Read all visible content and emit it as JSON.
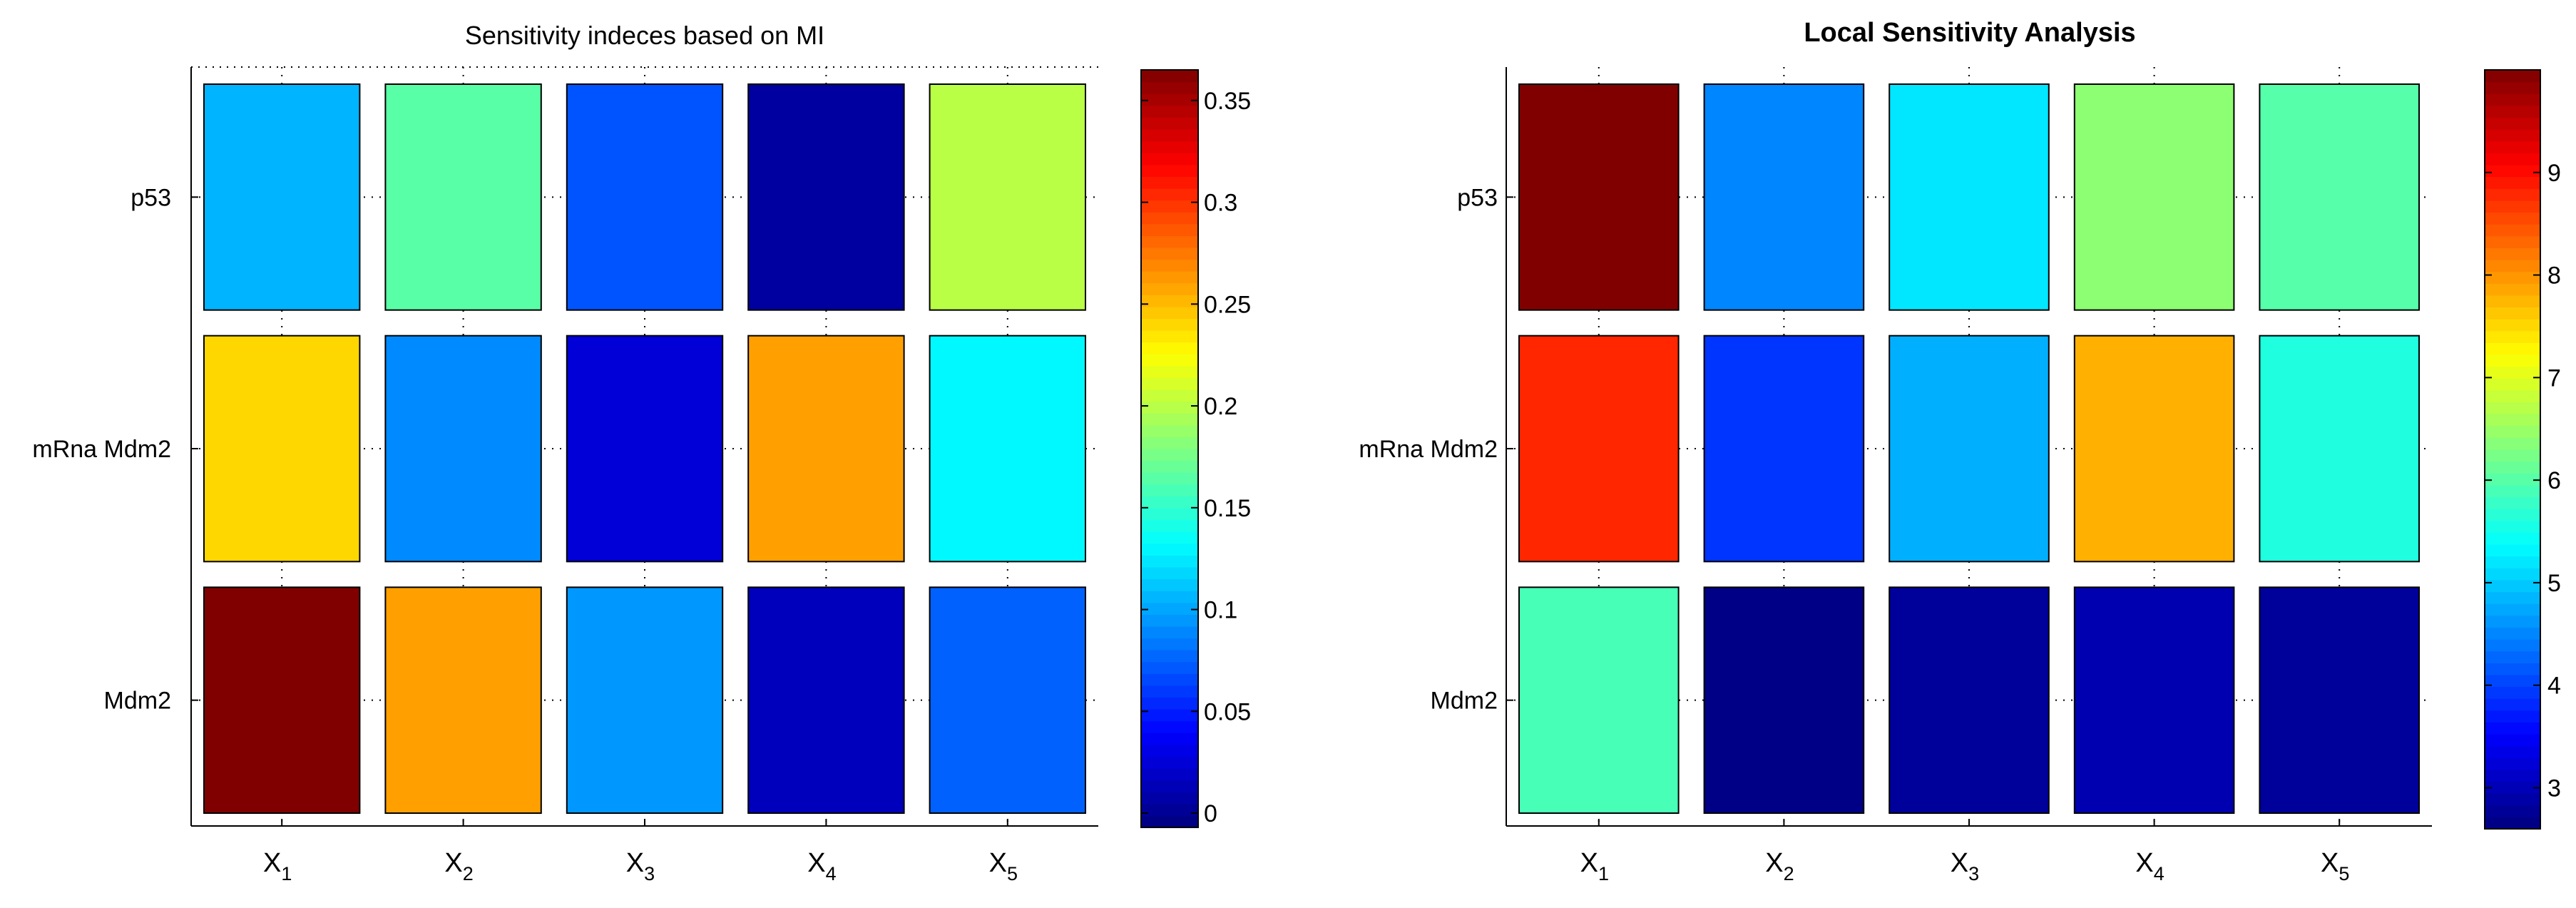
{
  "chart_data": [
    {
      "type": "heatmap",
      "title": "Sensitivity indeces based on MI",
      "rows": [
        "p53",
        "mRna Mdm2",
        "Mdm2"
      ],
      "columns": [
        "X1",
        "X2",
        "X3",
        "X4",
        "X5"
      ],
      "column_labels": [
        {
          "base": "X",
          "sub": "1"
        },
        {
          "base": "X",
          "sub": "2"
        },
        {
          "base": "X",
          "sub": "3"
        },
        {
          "base": "X",
          "sub": "4"
        },
        {
          "base": "X",
          "sub": "5"
        }
      ],
      "values": [
        [
          0.105,
          0.165,
          0.07,
          0.005,
          0.2
        ],
        [
          0.24,
          0.09,
          0.025,
          0.26,
          0.13
        ],
        [
          0.365,
          0.26,
          0.095,
          0.015,
          0.075
        ]
      ],
      "colorbar": {
        "colormap": "jet",
        "range": [
          -0.007,
          0.365
        ],
        "ticks": [
          0,
          0.05,
          0.1,
          0.15,
          0.2,
          0.25,
          0.3,
          0.35
        ],
        "tick_labels": [
          "0",
          "0.05",
          "0.1",
          "0.15",
          "0.2",
          "0.25",
          "0.3",
          "0.35"
        ]
      },
      "grid": "dotted"
    },
    {
      "type": "heatmap",
      "title": "Local Sensitivity Analysis",
      "rows": [
        "p53",
        "mRna Mdm2",
        "Mdm2"
      ],
      "columns": [
        "X1",
        "X2",
        "X3",
        "X4",
        "X5"
      ],
      "column_labels": [
        {
          "base": "X",
          "sub": "1"
        },
        {
          "base": "X",
          "sub": "2"
        },
        {
          "base": "X",
          "sub": "3"
        },
        {
          "base": "X",
          "sub": "4"
        },
        {
          "base": "X",
          "sub": "5"
        }
      ],
      "values": [
        [
          10.0,
          4.5,
          5.2,
          6.4,
          6.0
        ],
        [
          8.8,
          3.9,
          4.8,
          7.8,
          5.6
        ],
        [
          5.9,
          2.65,
          2.8,
          2.95,
          2.8
        ]
      ],
      "colorbar": {
        "colormap": "jet",
        "range": [
          2.6,
          10.0
        ],
        "ticks": [
          3,
          4,
          5,
          6,
          7,
          8,
          9
        ],
        "tick_labels": [
          "3",
          "4",
          "5",
          "6",
          "7",
          "8",
          "9"
        ]
      },
      "grid": "dotted"
    }
  ]
}
